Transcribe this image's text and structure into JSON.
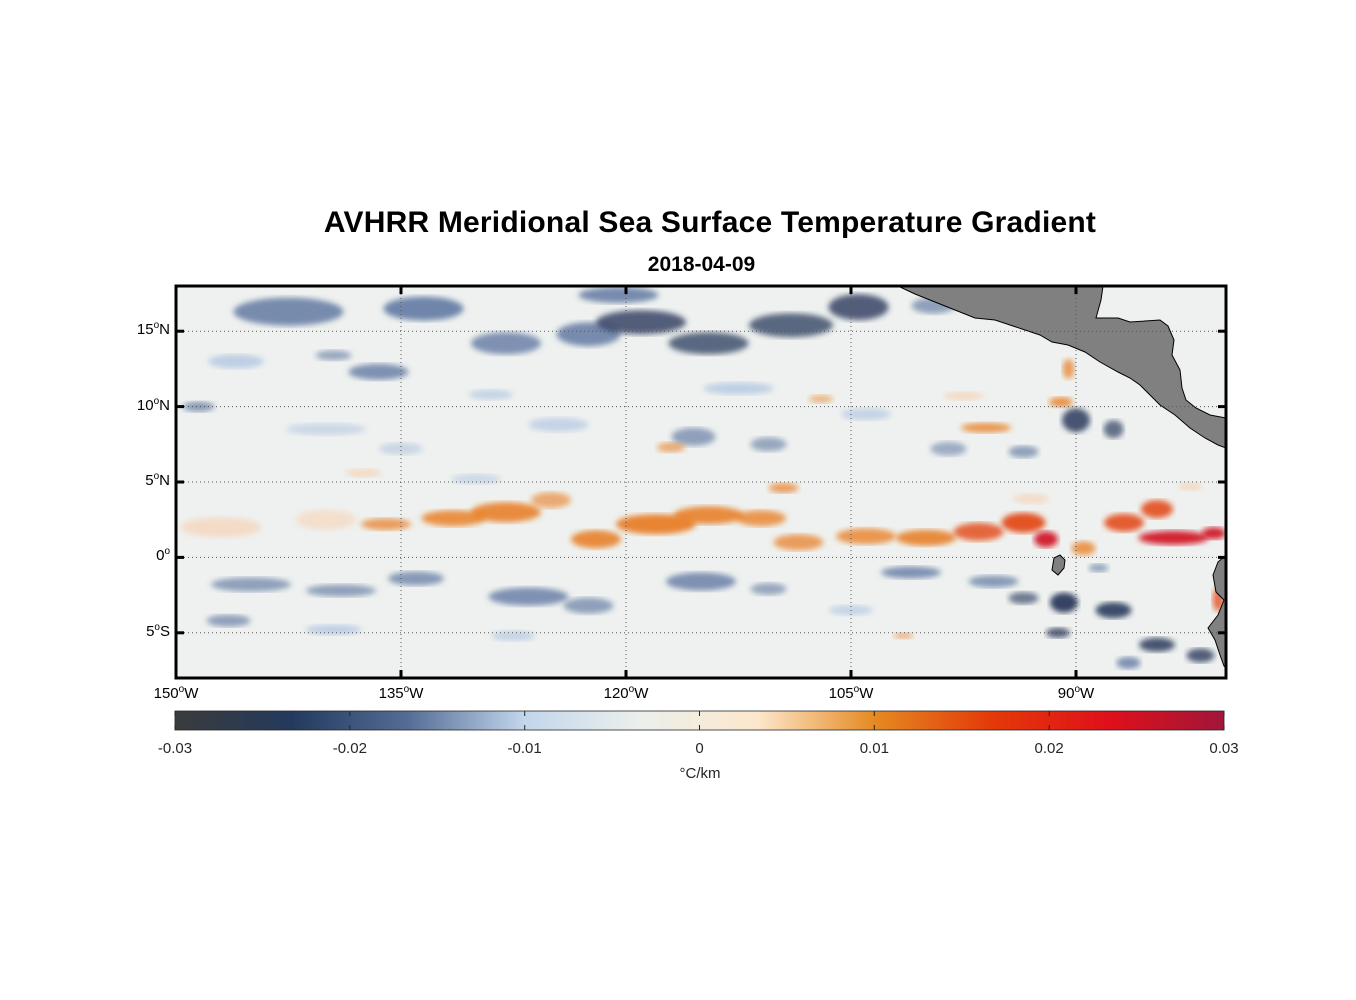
{
  "figure": {
    "title": "AVHRR Meridional Sea Surface Temperature Gradient",
    "subtitle": "2018-04-09"
  },
  "map": {
    "region": "Eastern Tropical Pacific",
    "projection": "equirectangular",
    "lon_range": [
      -150,
      -80
    ],
    "lat_range": [
      -8,
      18
    ],
    "land_color": "#808080",
    "grid": "dotted",
    "lat_ticks": [
      {
        "value": 15,
        "num": "15",
        "hemi": "N"
      },
      {
        "value": 10,
        "num": "10",
        "hemi": "N"
      },
      {
        "value": 5,
        "num": "5",
        "hemi": "N"
      },
      {
        "value": 0,
        "num": "0",
        "hemi": ""
      },
      {
        "value": -5,
        "num": "5",
        "hemi": "S"
      }
    ],
    "lon_ticks": [
      {
        "value": -150,
        "num": "150",
        "hemi": "W"
      },
      {
        "value": -135,
        "num": "135",
        "hemi": "W"
      },
      {
        "value": -120,
        "num": "120",
        "hemi": "W"
      },
      {
        "value": -105,
        "num": "105",
        "hemi": "W"
      },
      {
        "value": -90,
        "num": "90",
        "hemi": "W"
      }
    ]
  },
  "colorbar": {
    "min": -0.03,
    "max": 0.03,
    "unit": "°C/km",
    "ticks": [
      "-0.03",
      "-0.02",
      "-0.01",
      "0",
      "0.01",
      "0.02",
      "0.03"
    ],
    "colors": [
      "#3b3b3b",
      "#233a5e",
      "#556d96",
      "#c2d6ec",
      "#ecf0ec",
      "#fde7cb",
      "#e58a22",
      "#e43a08",
      "#e0101a",
      "#a0163a"
    ]
  },
  "field_features": [
    {
      "name": "equatorial front (positive)",
      "lon": [
        -148,
        -81
      ],
      "lat": [
        0,
        4
      ],
      "sign": "positive"
    },
    {
      "name": "negative band south of equator",
      "lon": [
        -148,
        -95
      ],
      "lat": [
        -5,
        -1
      ],
      "sign": "negative"
    },
    {
      "name": "northern negative eddies",
      "lon": [
        -145,
        -98
      ],
      "lat": [
        12,
        18
      ],
      "sign": "negative"
    },
    {
      "name": "intense negative near Galapagos",
      "lon": [
        -92,
        -85
      ],
      "lat": [
        -4,
        -2
      ],
      "sign": "negative"
    },
    {
      "name": "strong positive east of Galapagos",
      "lon": [
        -89,
        -80
      ],
      "lat": [
        0,
        3
      ],
      "sign": "positive"
    }
  ]
}
